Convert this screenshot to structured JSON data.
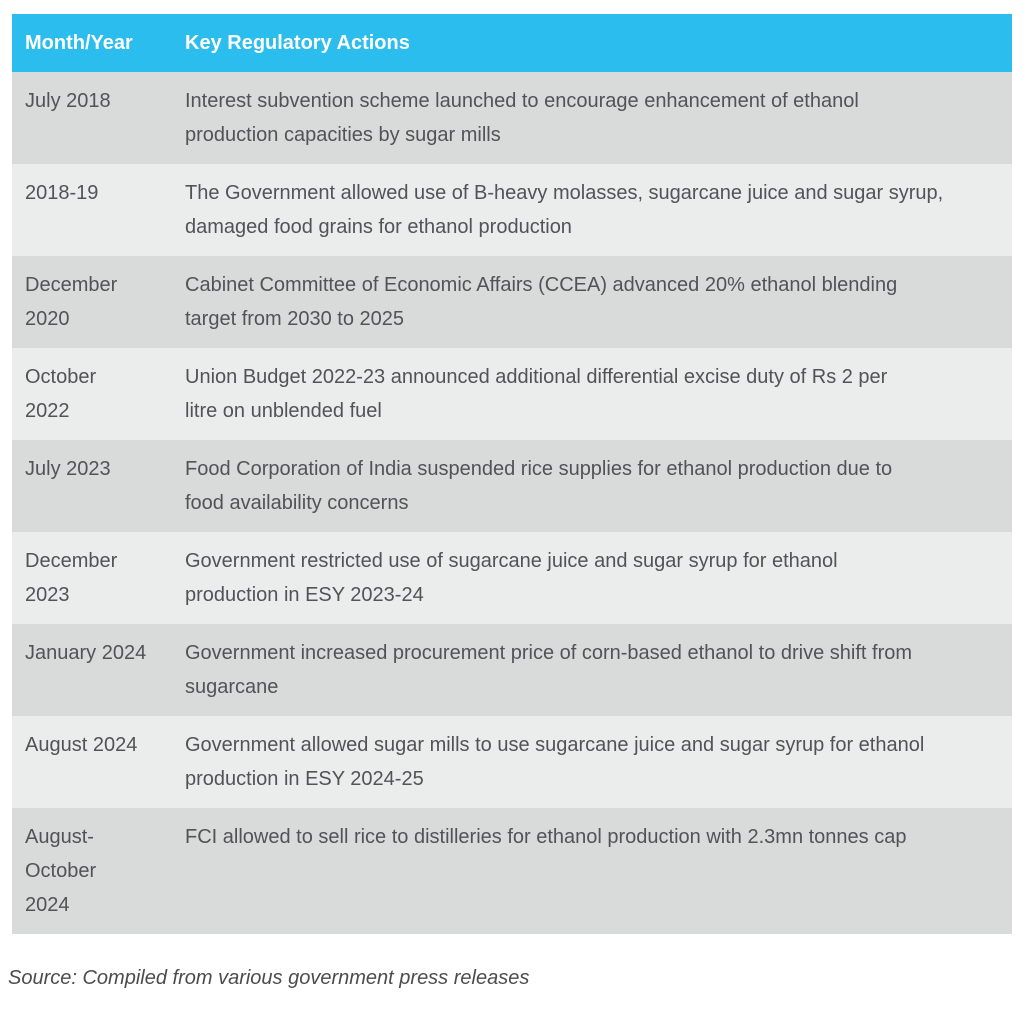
{
  "table": {
    "columns": [
      {
        "label": "Month/Year"
      },
      {
        "label": "Key Regulatory Actions"
      }
    ],
    "rows": [
      {
        "period": "July 2018",
        "action": "Interest subvention scheme launched to encourage enhancement of ethanol\nproduction capacities by sugar mills"
      },
      {
        "period": "2018-19",
        "action": "The Government allowed use of B-heavy molasses, sugarcane juice and sugar syrup,\ndamaged food grains for ethanol production"
      },
      {
        "period": "December\n2020",
        "action": "Cabinet Committee of Economic Affairs (CCEA) advanced 20% ethanol blending\ntarget from 2030 to 2025"
      },
      {
        "period": "October\n2022",
        "action": "Union Budget 2022-23 announced additional differential excise duty of Rs 2 per\nlitre on unblended fuel"
      },
      {
        "period": "July 2023",
        "action": "Food Corporation of India suspended rice supplies for ethanol production due to\nfood availability concerns"
      },
      {
        "period": "December\n2023",
        "action": "Government restricted use of sugarcane juice and sugar syrup for ethanol\nproduction in ESY 2023-24"
      },
      {
        "period": "January 2024",
        "action": "Government increased procurement price of corn-based ethanol to drive shift from\nsugarcane"
      },
      {
        "period": "August 2024",
        "action": "Government allowed sugar mills to use sugarcane juice and sugar syrup for ethanol\nproduction in ESY 2024-25"
      },
      {
        "period": "August-\nOctober\n2024",
        "action": "FCI allowed to sell rice to distilleries for ethanol production with 2.3mn tonnes cap"
      }
    ]
  },
  "source": "Source: Compiled from various government press releases",
  "colors": {
    "header_bg": "#2bbdee",
    "header_text": "#ffffff",
    "row_dark": "#d9dada",
    "row_light": "#ebecec",
    "body_text": "#515356",
    "source_text": "#4c4c4c"
  }
}
